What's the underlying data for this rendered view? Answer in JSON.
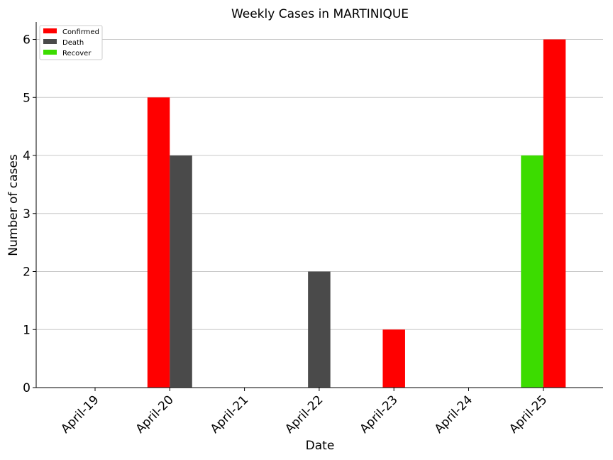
{
  "chart_data": {
    "type": "bar",
    "title": "Weekly Cases in MARTINIQUE",
    "xlabel": "Date",
    "ylabel": "Number of cases",
    "categories": [
      "April-19",
      "April-20",
      "April-21",
      "April-22",
      "April-23",
      "April-24",
      "April-25"
    ],
    "series": [
      {
        "name": "Confirmed",
        "color": "#ff0000",
        "values": [
          0,
          5,
          0,
          0,
          1,
          0,
          6
        ]
      },
      {
        "name": "Death",
        "color": "#4a4a4a",
        "values": [
          0,
          4,
          0,
          2,
          0,
          0,
          0
        ]
      },
      {
        "name": "Recover",
        "color": "#3cdc00",
        "values": [
          0,
          0,
          0,
          0,
          0,
          0,
          4
        ]
      }
    ],
    "ylim": [
      0,
      6.3
    ],
    "yticks": [
      0,
      1,
      2,
      3,
      4,
      5,
      6
    ],
    "grid": "horizontal",
    "legend": "top-left"
  }
}
